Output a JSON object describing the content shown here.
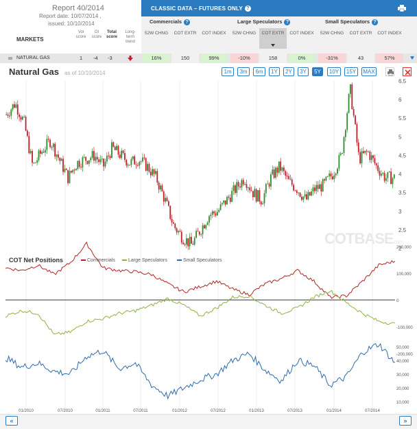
{
  "report": {
    "title": "Report 40/2014",
    "date": "Report date: 10/07/2014 ,",
    "issued": "issued: 10/10/2014",
    "markets_label": "MARKETS"
  },
  "header_cols": {
    "vol": "Vol score",
    "oi": "OI score",
    "total": "Total score",
    "trend": "Long-term trend"
  },
  "classic": {
    "title": "CLASSIC DATA – FUTURES ONLY",
    "groups": [
      "Commercials",
      "Large Speculators",
      "Small Speculators"
    ],
    "cols": [
      "52W CHNG",
      "COT EXTR",
      "COT INDEX",
      "52W CHNG",
      "COT EXTR",
      "COT INDEX",
      "52W CHNG",
      "COT EXTR",
      "COT INDEX"
    ]
  },
  "row": {
    "name": "NATURAL GAS",
    "vol": "1",
    "oi": "-4",
    "total": "-3",
    "values": [
      "16%",
      "150",
      "99%",
      "-10%",
      "158",
      "0%",
      "-31%",
      "43",
      "57%"
    ],
    "colors": [
      "#d9f2d0",
      "#f1f1f1",
      "#d9f2d0",
      "#f8d6d6",
      "#f1f1f1",
      "#d9f2d0",
      "#f8d6d6",
      "#f1f1f1",
      "#f8d6d6"
    ]
  },
  "chart": {
    "title": "Natural Gas",
    "asof": "as of 10/10/2014",
    "ranges": [
      "1m",
      "3m",
      "6m",
      "1Y",
      "2Y",
      "3Y",
      "5Y",
      "10Y",
      "15Y",
      "MAX"
    ],
    "active_range": "5Y",
    "watermark": "COTBASE",
    "watermark_suffix": ".com"
  },
  "chart_data": [
    {
      "type": "candlestick",
      "title": "Natural Gas",
      "x": [
        "01/2010",
        "07/2010",
        "01/2011",
        "07/2011",
        "01/2012",
        "07/2012",
        "01/2013",
        "07/2013",
        "01/2014",
        "07/2014"
      ],
      "y_ticks": [
        2,
        2.5,
        3,
        3.5,
        4,
        4.5,
        5,
        5.5,
        6,
        6.5
      ],
      "close_series": [
        5.6,
        5.9,
        5.4,
        4.2,
        4.6,
        4.9,
        4.4,
        3.9,
        4.3,
        4.4,
        4.5,
        4.2,
        4.7,
        4.5,
        4.3,
        4.4,
        4.2,
        3.9,
        3.3,
        2.6,
        2.3,
        2.1,
        2.5,
        2.9,
        3.0,
        3.3,
        3.6,
        3.9,
        3.5,
        3.3,
        3.9,
        4.2,
        3.8,
        3.6,
        3.3,
        3.6,
        3.7,
        4.0,
        4.5,
        6.3,
        4.4,
        4.6,
        4.2,
        3.9,
        3.9
      ]
    },
    {
      "type": "line",
      "title": "COT Net Positions",
      "series": [
        {
          "name": "Commercials",
          "color": "#b22222"
        },
        {
          "name": "Large Speculators",
          "color": "#8db33f"
        },
        {
          "name": "Small Speculators",
          "color": "#2f6aad"
        }
      ],
      "y_ticks_top": [
        "200,000",
        "100,000",
        "0",
        "-100,000",
        "-200,000"
      ],
      "y_ticks_bottom": [
        "50,000",
        "40,000",
        "30,000",
        "20,000",
        "10,000"
      ]
    }
  ],
  "colors": {
    "accent": "#2b7bc0",
    "up": "#2e8b2e",
    "down": "#c0202a"
  }
}
